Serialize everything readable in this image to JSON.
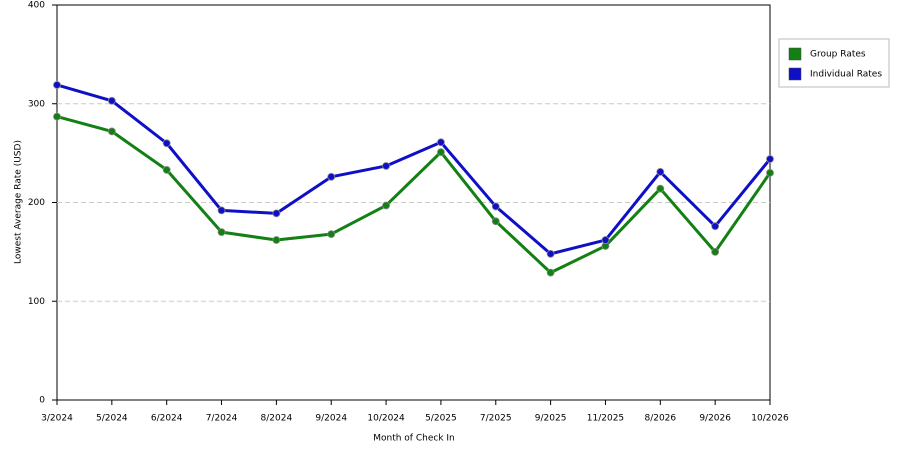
{
  "chart_data": {
    "type": "line",
    "x_label": "Month of Check In",
    "y_label": "Lowest Average Rate (USD)",
    "categories": [
      "3/2024",
      "5/2024",
      "6/2024",
      "7/2024",
      "8/2024",
      "9/2024",
      "10/2024",
      "5/2025",
      "7/2025",
      "9/2025",
      "11/2025",
      "8/2026",
      "9/2026",
      "10/2026"
    ],
    "series": [
      {
        "name": "Group Rates",
        "color": "#138013",
        "values": [
          287,
          272,
          233,
          170,
          162,
          168,
          197,
          251,
          181,
          129,
          156,
          214,
          150,
          230
        ]
      },
      {
        "name": "Individual Rates",
        "color": "#0f0fc8",
        "values": [
          319,
          303,
          260,
          192,
          189,
          226,
          237,
          261,
          196,
          148,
          162,
          231,
          176,
          244
        ]
      }
    ],
    "ylim": [
      0,
      400
    ],
    "yticks": [
      0,
      100,
      200,
      300,
      400
    ],
    "grid": true,
    "legend": "right"
  }
}
